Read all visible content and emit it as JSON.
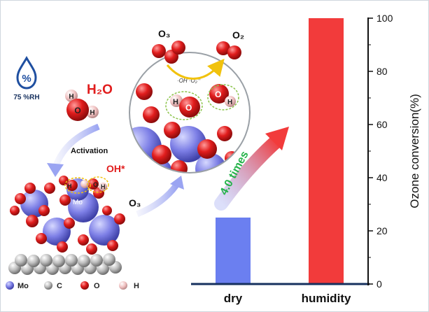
{
  "left_panel": {
    "humidity_glyph": "%",
    "humidity_label": "75 %RH",
    "water_label": "H₂O",
    "activation_label": "Activation",
    "oh_label": "OH*",
    "mo_atom_label": "Mo",
    "o3_label": "O₃",
    "atom_H": "H",
    "atom_O": "O"
  },
  "legend": [
    {
      "symbol": "Mo",
      "color": "#7d7fe6"
    },
    {
      "symbol": "C",
      "color": "#bdbdbd"
    },
    {
      "symbol": "O",
      "color": "#e11d1d"
    },
    {
      "symbol": "H",
      "color": "#f0c0c0"
    }
  ],
  "inset": {
    "o3_label": "O₃",
    "o2_label": "O₂",
    "reaction_text": "·OH ·O₂⁻",
    "atom_H": "H",
    "atom_O": "O"
  },
  "arrow_text": "4.0 times",
  "chart_data": {
    "type": "bar",
    "categories": [
      "dry",
      "humidity"
    ],
    "values": [
      25,
      100
    ],
    "colors": [
      "#6b7ff0",
      "#f23b3b"
    ],
    "ylabel": "Ozone conversion(%)",
    "ylim": [
      0,
      100
    ],
    "yticks": [
      "0",
      "20",
      "40",
      "60",
      "80",
      "100"
    ]
  },
  "colors": {
    "mo": "#7d7fe6",
    "oxygen": "#e11d1d",
    "carbon": "#bdbdbd",
    "hydrogen": "#f0c0c0",
    "axis": "#16305e",
    "arrow_green": "#25b34a",
    "highlight_yellow": "#f1c20d"
  }
}
